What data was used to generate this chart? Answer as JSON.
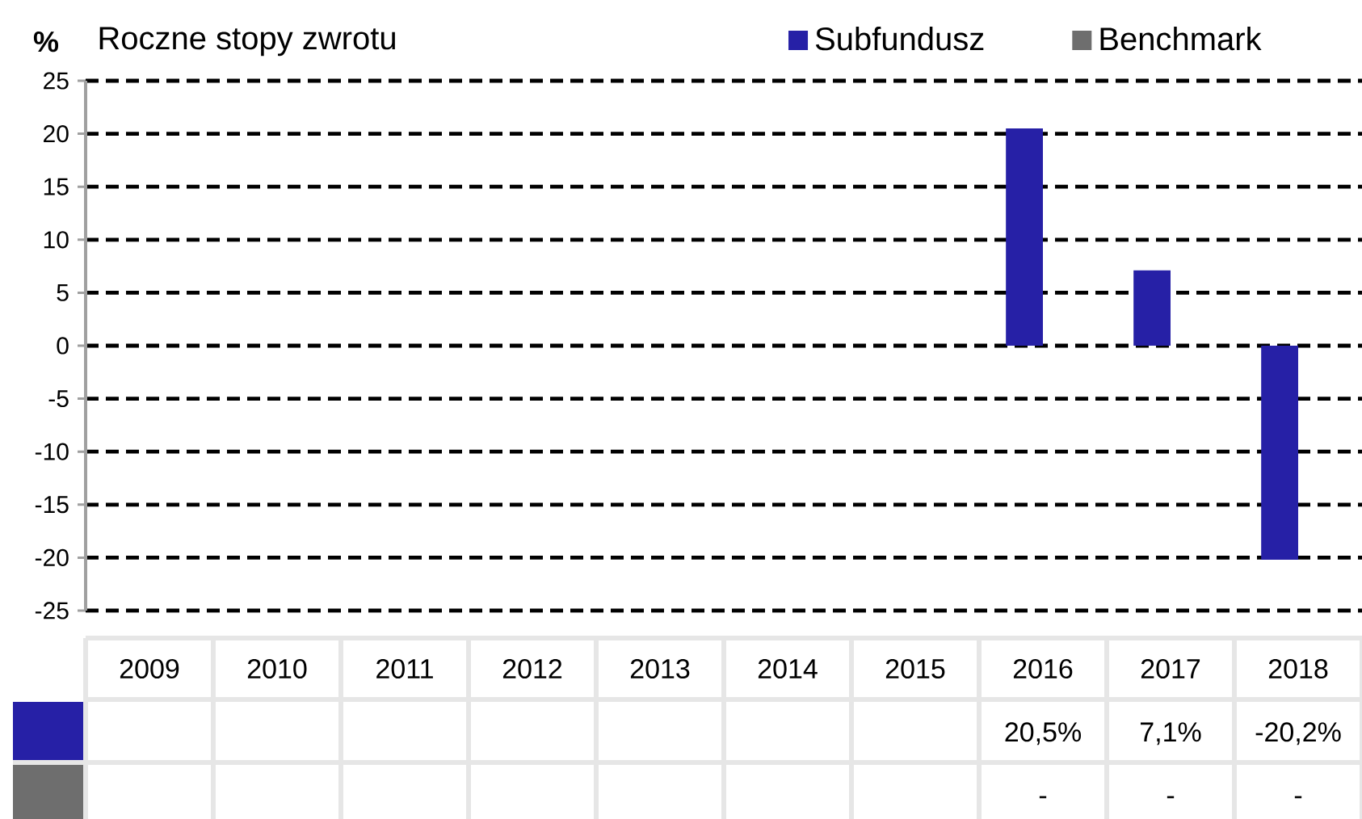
{
  "chart_data": {
    "type": "bar",
    "title": "Roczne stopy zwrotu",
    "ylabel": "%",
    "categories": [
      "2009",
      "2010",
      "2011",
      "2012",
      "2013",
      "2014",
      "2015",
      "2016",
      "2017",
      "2018"
    ],
    "series": [
      {
        "name": "Subfundusz",
        "color": "#2620a6",
        "values": [
          null,
          null,
          null,
          null,
          null,
          null,
          null,
          20.5,
          7.1,
          -20.2
        ],
        "value_labels": [
          null,
          null,
          null,
          null,
          null,
          null,
          null,
          "20,5%",
          "7,1%",
          "-20,2%"
        ]
      },
      {
        "name": "Benchmark",
        "color": "#6e6e6e",
        "values": [
          null,
          null,
          null,
          null,
          null,
          null,
          null,
          null,
          null,
          null
        ],
        "value_labels": [
          null,
          null,
          null,
          null,
          null,
          null,
          null,
          "-",
          "-",
          "-"
        ]
      }
    ],
    "ylim": [
      -25,
      25
    ],
    "yticks": [
      -25,
      -20,
      -15,
      -10,
      -5,
      0,
      5,
      10,
      15,
      20,
      25
    ],
    "grid": "y",
    "legend": "top right"
  }
}
